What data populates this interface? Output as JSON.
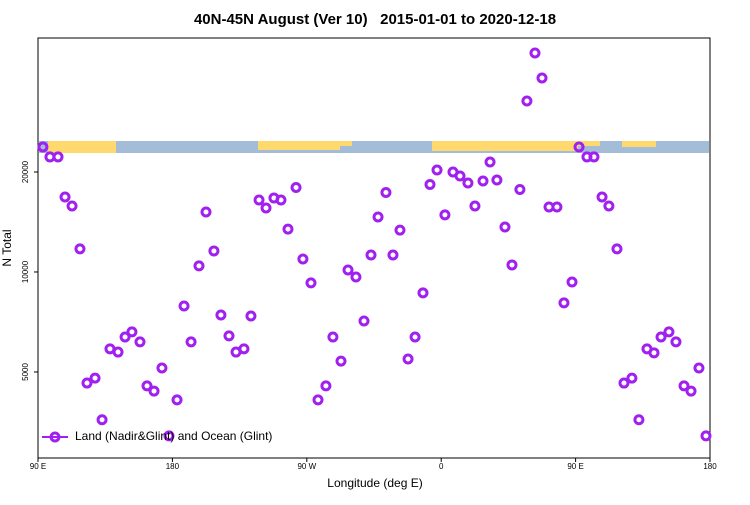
{
  "chart_data": {
    "type": "scatter",
    "title": "40N-45N August (Ver 10)   2015-01-01 to 2020-12-18",
    "x_label": "Longitude (deg E)",
    "y_label": "N Total",
    "xlim": [
      90,
      540
    ],
    "xticks": [
      {
        "value": 90,
        "label": "90 E"
      },
      180,
      {
        "value": 270,
        "label": "90 W"
      },
      {
        "value": 360,
        "label": "0"
      },
      {
        "value": 450,
        "label": "90 E"
      },
      {
        "value": 540,
        "label": "180"
      }
    ],
    "ylim": [
      2754,
      50630
    ],
    "yticks": [
      5000,
      10000,
      20000
    ],
    "log_y": true,
    "legend": "bottom-left",
    "x": [
      93.3,
      98.0,
      103.4,
      108.1,
      112.8,
      118.1,
      122.8,
      128.2,
      132.9,
      138.2,
      143.6,
      148.3,
      152.9,
      158.3,
      163.0,
      167.7,
      173.0,
      177.7,
      183.1,
      187.8,
      192.5,
      197.8,
      202.5,
      207.8,
      212.5,
      217.9,
      222.6,
      227.9,
      232.6,
      238.0,
      242.7,
      248.0,
      252.7,
      257.4,
      262.8,
      267.4,
      272.8,
      277.5,
      282.8,
      287.5,
      292.9,
      297.6,
      302.9,
      308.3,
      313.0,
      317.7,
      323.0,
      327.7,
      332.4,
      337.8,
      342.5,
      347.8,
      352.5,
      357.2,
      362.5,
      367.9,
      372.6,
      377.9,
      382.6,
      388.0,
      392.7,
      397.3,
      402.7,
      407.4,
      412.7,
      417.4,
      422.8,
      427.5,
      432.2,
      437.5,
      442.2,
      447.6,
      452.3,
      457.6,
      462.3,
      467.7,
      472.3,
      477.7,
      482.4,
      487.7,
      492.4,
      497.8,
      502.5,
      507.2,
      512.5,
      517.2,
      522.6,
      527.3,
      532.6,
      537.3
    ],
    "series": [
      {
        "name": "Land (Nadir&Glint) and Ocean (Glint)",
        "color": "#a020f0",
        "values": [
          23780,
          22200,
          22200,
          16820,
          15800,
          11740,
          4630,
          4790,
          3590,
          5870,
          5740,
          6370,
          6600,
          6160,
          4540,
          4380,
          5140,
          3210,
          4120,
          7900,
          6160,
          10430,
          15160,
          11570,
          7420,
          6420,
          5740,
          5870,
          7370,
          16470,
          15580,
          16700,
          16470,
          13460,
          17960,
          10940,
          9270,
          4120,
          4540,
          6370,
          5390,
          10140,
          9660,
          7120,
          11250,
          14640,
          17350,
          11250,
          13370,
          5470,
          6370,
          8650,
          18340,
          20280,
          14860,
          20000,
          19450,
          18530,
          15800,
          18790,
          21440,
          18920,
          13660,
          10500,
          17710,
          32720,
          45640,
          38370,
          15690,
          15690,
          8070,
          9330,
          23780,
          22200,
          22200,
          16820,
          15800,
          11740,
          4630,
          4790,
          3590,
          5870,
          5710,
          6370,
          6600,
          6160,
          4540,
          4380,
          5140,
          3210
        ]
      }
    ]
  }
}
